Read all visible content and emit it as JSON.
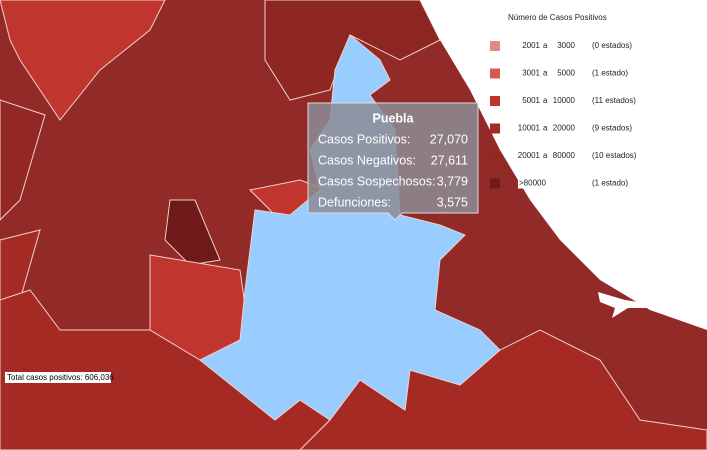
{
  "tooltip": {
    "title": "Puebla",
    "rows": [
      {
        "label": "Casos Positivos:",
        "value": "27,070"
      },
      {
        "label": "Casos Negativos:",
        "value": "27,611"
      },
      {
        "label": "Casos Sospechosos:",
        "value": "3,779"
      },
      {
        "label": "Defunciones:",
        "value": "3,575"
      }
    ]
  },
  "legend": {
    "title": "Número de Casos Positivos",
    "rows": [
      {
        "color": "#e08a84",
        "min": "2001",
        "sep": "a",
        "max": "3000",
        "count": "(0 estados)"
      },
      {
        "color": "#d45a52",
        "min": "3001",
        "sep": "a",
        "max": "5000",
        "count": "(1 estado)"
      },
      {
        "color": "#c1332e",
        "min": "5001",
        "sep": "a",
        "max": "10000",
        "count": "(11 estados)"
      },
      {
        "color": "#a52a24",
        "min": "10001",
        "sep": "a",
        "max": "20000",
        "count": "(9 estados)"
      },
      {
        "color": "#922724",
        "min": "20001",
        "sep": "a",
        "max": "80000",
        "count": "(10 estados)"
      },
      {
        "color": "#6e1a18",
        "label": ">80000",
        "count": "(1 estado)"
      }
    ]
  },
  "total": "Total casos positivos: 606,036"
}
